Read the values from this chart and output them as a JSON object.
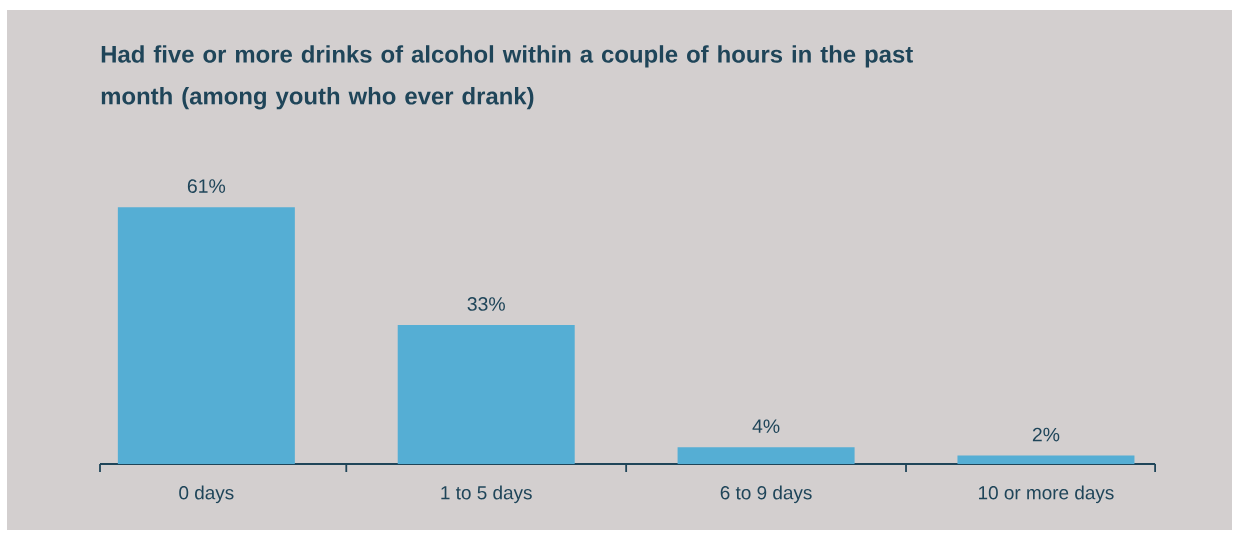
{
  "chart_data": {
    "type": "bar",
    "title": "Had five or more drinks of alcohol within a couple of hours in the past month (among youth who ever drank)",
    "categories": [
      "0 days",
      "1 to 5 days",
      "6 to 9 days",
      "10 or more days"
    ],
    "values": [
      61,
      33,
      4,
      2
    ],
    "value_labels": [
      "61%",
      "33%",
      "4%",
      "2%"
    ],
    "color": "#55aed4"
  }
}
